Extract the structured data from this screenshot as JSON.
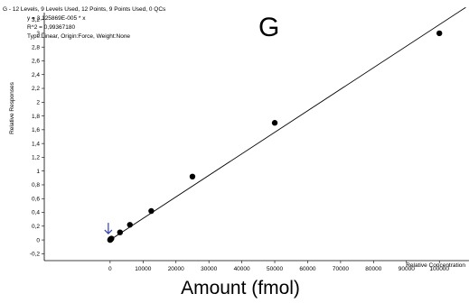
{
  "chart_data": {
    "type": "scatter",
    "title_line": "G - 12 Levels, 9 Levels Used, 12 Points, 9 Points Used, 0 QCs",
    "equation": "y = 3,125869E-005 * x",
    "r_squared": "R^2 = 0,99367180",
    "fit_info": "Type:Linear,  Origin:Force,  Weight:None",
    "big_label": "G",
    "xlabel": "Relative Concentration",
    "ylabel": "Relative Responses",
    "caption": "Amount (fmol)",
    "xlim": [
      -20000,
      109000
    ],
    "ylim": [
      -0.3,
      3.3
    ],
    "x_ticks": [
      0,
      10000,
      20000,
      30000,
      40000,
      50000,
      60000,
      70000,
      80000,
      90000,
      100000
    ],
    "x_tick_labels": [
      "0",
      "10000",
      "20000",
      "30000",
      "40000",
      "50000",
      "60000",
      "70000",
      "80000",
      "90000",
      "100000"
    ],
    "y_ticks": [
      -0.2,
      0,
      0.2,
      0.4,
      0.6,
      0.8,
      1,
      1.2,
      1.4,
      1.6,
      1.8,
      2,
      2.2,
      2.4,
      2.6,
      2.8,
      3,
      3.2
    ],
    "y_tick_labels": [
      "-0,2",
      "0",
      "0,2",
      "0,4",
      "0,6",
      "0,8",
      "1",
      "1,2",
      "1,4",
      "1,6",
      "1,8",
      "2",
      "2,2",
      "2,4",
      "2,6",
      "2,8",
      "3",
      "3,2"
    ],
    "series": [
      {
        "points": [
          {
            "x": 0,
            "y": 0.0
          },
          {
            "x": 100,
            "y": 0.01
          },
          {
            "x": 200,
            "y": 0.01
          },
          {
            "x": 400,
            "y": 0.02
          },
          {
            "x": 3000,
            "y": 0.11
          },
          {
            "x": 6000,
            "y": 0.22
          },
          {
            "x": 12500,
            "y": 0.42
          },
          {
            "x": 25000,
            "y": 0.92
          },
          {
            "x": 50000,
            "y": 1.7
          },
          {
            "x": 100000,
            "y": 3.0
          }
        ]
      }
    ],
    "fit": {
      "slope": 3.125869e-05,
      "intercept": 0,
      "x_end": 108000
    },
    "arrow_color": "#2e3db8",
    "point_color": "#000000",
    "line_color": "#000000"
  }
}
